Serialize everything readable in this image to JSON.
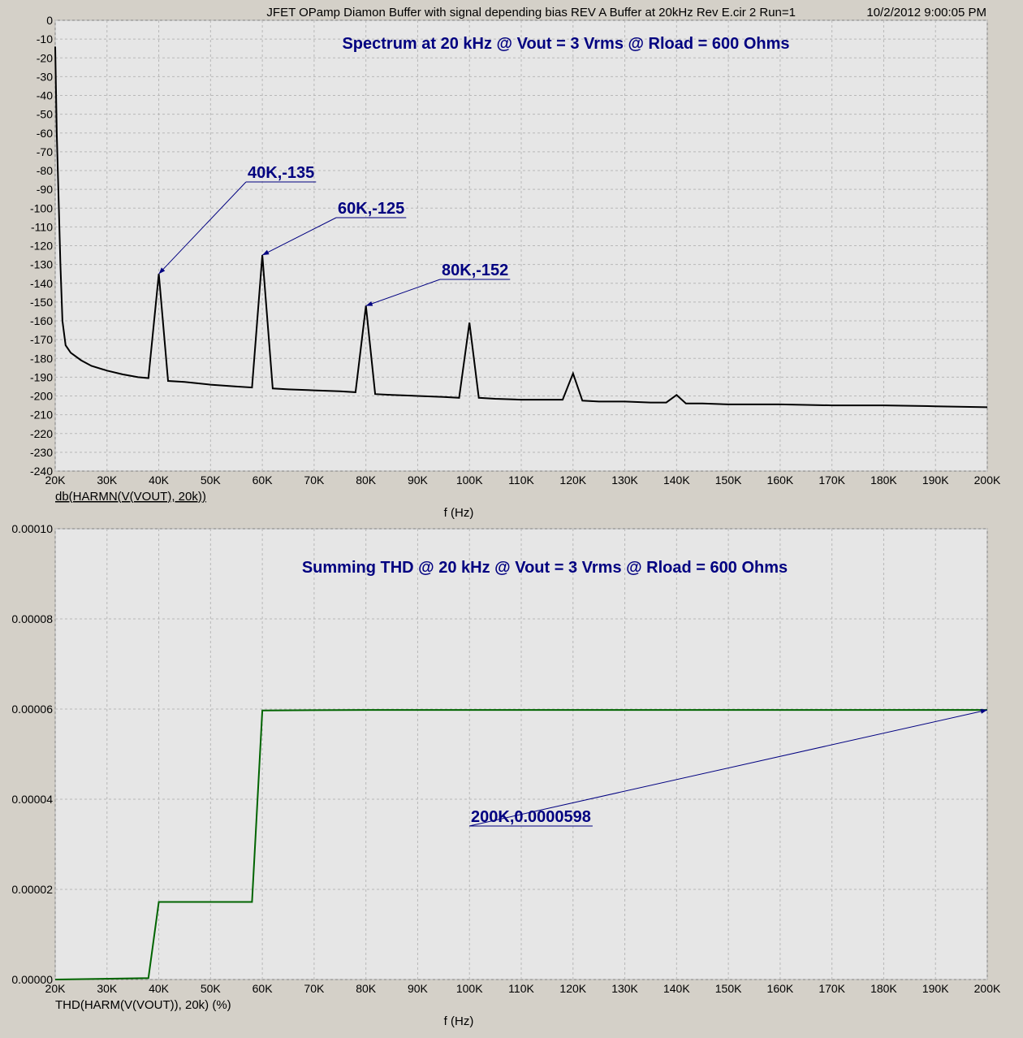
{
  "header": {
    "title": "JFET OPamp Diamon Buffer with signal depending bias REV A Buffer at 20kHz Rev E.cir 2 Run=1",
    "timestamp": "10/2/2012 9:00:05 PM"
  },
  "colors": {
    "background": "#d4d0c8",
    "plot_area": "#e6e6e6",
    "grid": "#b8b8b8",
    "annotation": "#000080",
    "spectrum_trace": "#000000",
    "thd_trace": "#006400"
  },
  "chart_data": [
    {
      "type": "line",
      "title": "Spectrum at 20 kHz @ Vout = 3 Vrms @ Rload = 600 Ohms",
      "xlabel": "f (Hz)",
      "ylabel": "db(HARMN(V(VOUT), 20k))",
      "xlim": [
        20000,
        200000
      ],
      "ylim": [
        -240,
        0
      ],
      "grid": true,
      "x_ticks": [
        20000,
        30000,
        40000,
        50000,
        60000,
        70000,
        80000,
        90000,
        100000,
        110000,
        120000,
        130000,
        140000,
        150000,
        160000,
        170000,
        180000,
        190000,
        200000
      ],
      "x_tick_labels": [
        "20K",
        "30K",
        "40K",
        "50K",
        "60K",
        "70K",
        "80K",
        "90K",
        "100K",
        "110K",
        "120K",
        "130K",
        "140K",
        "150K",
        "160K",
        "170K",
        "180K",
        "190K",
        "200K"
      ],
      "y_ticks": [
        0,
        -10,
        -20,
        -30,
        -40,
        -50,
        -60,
        -70,
        -80,
        -90,
        -100,
        -110,
        -120,
        -130,
        -140,
        -150,
        -160,
        -170,
        -180,
        -190,
        -200,
        -210,
        -220,
        -230,
        -240
      ],
      "y_tick_labels": [
        "0",
        "-10",
        "-20",
        "-30",
        "-40",
        "-50",
        "-60",
        "-70",
        "-80",
        "-90",
        "-100",
        "-110",
        "-120",
        "-130",
        "-140",
        "-150",
        "-160",
        "-170",
        "-180",
        "-190",
        "-200",
        "-210",
        "-220",
        "-230",
        "-240"
      ],
      "series": [
        {
          "x": [
            20000,
            20300,
            20700,
            21000,
            21400,
            22000,
            23000,
            25000,
            27000,
            30000,
            33000,
            36000,
            38000,
            40000,
            41800,
            45000,
            50000,
            55000,
            58000,
            60000,
            62000,
            65000,
            70000,
            75000,
            78000,
            80000,
            81800,
            85000,
            90000,
            95000,
            98000,
            100000,
            101800,
            105000,
            110000,
            115000,
            118000,
            120000,
            121800,
            125000,
            130000,
            135000,
            138000,
            140000,
            141800,
            145000,
            150000,
            160000,
            170000,
            180000,
            190000,
            200000
          ],
          "y": [
            -14,
            -60,
            -100,
            -130,
            -160,
            -173,
            -177,
            -181,
            -184,
            -186.5,
            -188.5,
            -190,
            -190.5,
            -135,
            -192,
            -192.5,
            -194,
            -195,
            -195.5,
            -125,
            -196,
            -196.5,
            -197,
            -197.5,
            -198,
            -152,
            -199,
            -199.5,
            -200,
            -200.5,
            -201,
            -161,
            -201,
            -201.5,
            -202,
            -202,
            -202,
            -188,
            -202.5,
            -203,
            -203,
            -203.5,
            -203.5,
            -199.5,
            -204,
            -204,
            -204.5,
            -204.5,
            -205,
            -205,
            -205.5,
            -206
          ]
        }
      ],
      "annotations": [
        {
          "text": "40K,-135",
          "x": 40000,
          "y": -135
        },
        {
          "text": "60K,-125",
          "x": 60000,
          "y": -125
        },
        {
          "text": "80K,-152",
          "x": 80000,
          "y": -152
        }
      ]
    },
    {
      "type": "line",
      "title": "Summing THD @ 20 kHz @ Vout = 3 Vrms @ Rload = 600 Ohms",
      "xlabel": "f (Hz)",
      "ylabel": "THD(HARM(V(VOUT)), 20k) (%)",
      "xlim": [
        20000,
        200000
      ],
      "ylim": [
        0,
        0.0001
      ],
      "grid": true,
      "x_ticks": [
        20000,
        30000,
        40000,
        50000,
        60000,
        70000,
        80000,
        90000,
        100000,
        110000,
        120000,
        130000,
        140000,
        150000,
        160000,
        170000,
        180000,
        190000,
        200000
      ],
      "x_tick_labels": [
        "20K",
        "30K",
        "40K",
        "50K",
        "60K",
        "70K",
        "80K",
        "90K",
        "100K",
        "110K",
        "120K",
        "130K",
        "140K",
        "150K",
        "160K",
        "170K",
        "180K",
        "190K",
        "200K"
      ],
      "y_ticks": [
        0,
        2e-05,
        4e-05,
        6e-05,
        8e-05,
        0.0001
      ],
      "y_tick_labels": [
        "0.00000",
        "0.00002",
        "0.00004",
        "0.00006",
        "0.00008",
        "0.00010"
      ],
      "series": [
        {
          "x": [
            20000,
            38000,
            40000,
            58000,
            60000,
            80000,
            100000,
            120000,
            140000,
            160000,
            180000,
            200000
          ],
          "y": [
            0.0,
            3e-07,
            1.72e-05,
            1.72e-05,
            5.97e-05,
            5.98e-05,
            5.98e-05,
            5.98e-05,
            5.98e-05,
            5.98e-05,
            5.98e-05,
            5.98e-05
          ]
        }
      ],
      "annotations": [
        {
          "text": "200K,0.0000598",
          "x": 200000,
          "y": 5.98e-05
        }
      ]
    }
  ]
}
